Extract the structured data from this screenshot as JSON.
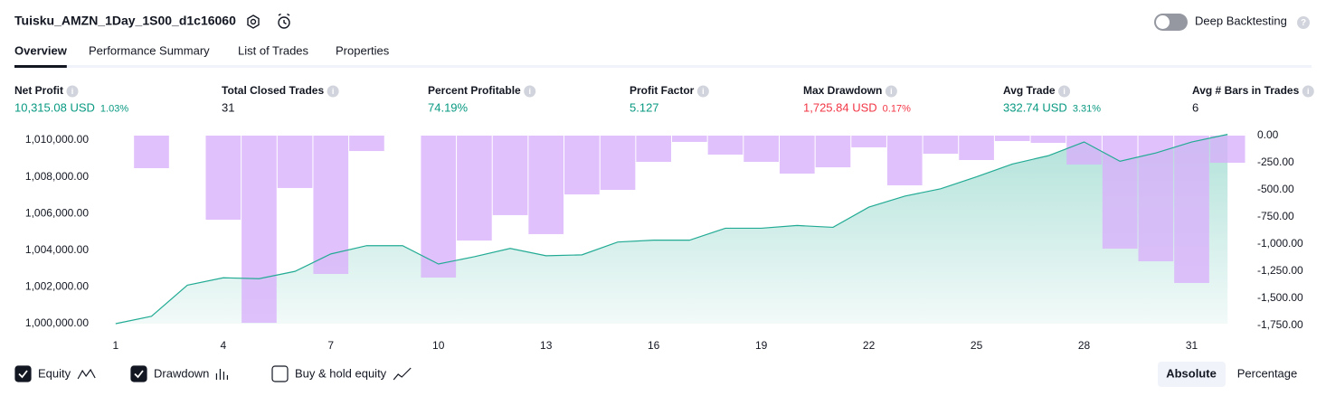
{
  "header": {
    "title": "Tuisku_AMZN_1Day_1S00_d1c16060",
    "toggle_label": "Deep Backtesting"
  },
  "tabs": [
    {
      "label": "Overview",
      "active": true
    },
    {
      "label": "Performance Summary",
      "active": false
    },
    {
      "label": "List of Trades",
      "active": false
    },
    {
      "label": "Properties",
      "active": false
    }
  ],
  "metrics": [
    {
      "label": "Net Profit",
      "value": "10,315.08 USD",
      "percent": "1.03%",
      "color": "#089981"
    },
    {
      "label": "Total Closed Trades",
      "value": "31",
      "color": "#131722"
    },
    {
      "label": "Percent Profitable",
      "value": "74.19%",
      "color": "#089981"
    },
    {
      "label": "Profit Factor",
      "value": "5.127",
      "color": "#089981"
    },
    {
      "label": "Max Drawdown",
      "value": "1,725.84 USD",
      "percent": "0.17%",
      "color": "#f23645"
    },
    {
      "label": "Avg Trade",
      "value": "332.74 USD",
      "percent": "3.31%",
      "color": "#089981"
    },
    {
      "label": "Avg # Bars in Trades",
      "value": "6",
      "color": "#131722"
    }
  ],
  "chart_data": {
    "type": "combo",
    "x": [
      1,
      2,
      3,
      4,
      5,
      6,
      7,
      8,
      9,
      10,
      11,
      12,
      13,
      14,
      15,
      16,
      17,
      18,
      19,
      20,
      21,
      22,
      23,
      24,
      25,
      26,
      27,
      28,
      29,
      30,
      31,
      32
    ],
    "xlim": [
      0.5,
      32.5
    ],
    "xticks": [
      1,
      4,
      7,
      10,
      13,
      16,
      19,
      22,
      25,
      28,
      31
    ],
    "ylim": [
      1000000,
      1010000
    ],
    "yticks": [
      {
        "value": 1000000,
        "label": "1,000,000.00"
      },
      {
        "value": 1002000,
        "label": "1,002,000.00"
      },
      {
        "value": 1004000,
        "label": "1,004,000.00"
      },
      {
        "value": 1006000,
        "label": "1,006,000.00"
      },
      {
        "value": 1008000,
        "label": "1,008,000.00"
      },
      {
        "value": 1010000,
        "label": "1,010,000.00"
      }
    ],
    "y2lim": [
      -1750,
      0
    ],
    "y2ticks": [
      {
        "value": 0,
        "label": "0.00"
      },
      {
        "value": -250,
        "label": "-250.00"
      },
      {
        "value": -500,
        "label": "-500.00"
      },
      {
        "value": -750,
        "label": "-750.00"
      },
      {
        "value": -1000,
        "label": "-1,000.00"
      },
      {
        "value": -1250,
        "label": "-1,250.00"
      },
      {
        "value": -1500,
        "label": "-1,500.00"
      },
      {
        "value": -1750,
        "label": "-1,750.00"
      }
    ],
    "grid": false,
    "series": [
      {
        "name": "Equity",
        "type": "area",
        "axis": "y",
        "color": "#22ab94",
        "values": [
          1000000,
          1000400,
          1002100,
          1002500,
          1002450,
          1002850,
          1003800,
          1004250,
          1004250,
          1003250,
          1003650,
          1004100,
          1003700,
          1003750,
          1004450,
          1004550,
          1004550,
          1005200,
          1005200,
          1005350,
          1005250,
          1006350,
          1006950,
          1007350,
          1008000,
          1008700,
          1009150,
          1009900,
          1008850,
          1009300,
          1009900,
          1010315
        ]
      },
      {
        "name": "Drawdown",
        "type": "bar",
        "axis": "y2",
        "color": "#d9b0fb",
        "values": [
          0,
          -300,
          0,
          -775,
          -1725.84,
          -483,
          -1275,
          -142,
          0,
          -1308,
          -967,
          -733,
          -908,
          -542,
          -500,
          -242,
          -58,
          -175,
          -242,
          -350,
          -292,
          -108,
          -458,
          -167,
          -225,
          -50,
          -67,
          -267,
          -1042,
          -1158,
          -1358,
          -250
        ]
      }
    ]
  },
  "legend_toggles": [
    {
      "label": "Equity",
      "checked": true
    },
    {
      "label": "Drawdown",
      "checked": true
    },
    {
      "label": "Buy & hold equity",
      "checked": false
    }
  ],
  "scale_buttons": [
    {
      "label": "Absolute",
      "active": true
    },
    {
      "label": "Percentage",
      "active": false
    }
  ]
}
